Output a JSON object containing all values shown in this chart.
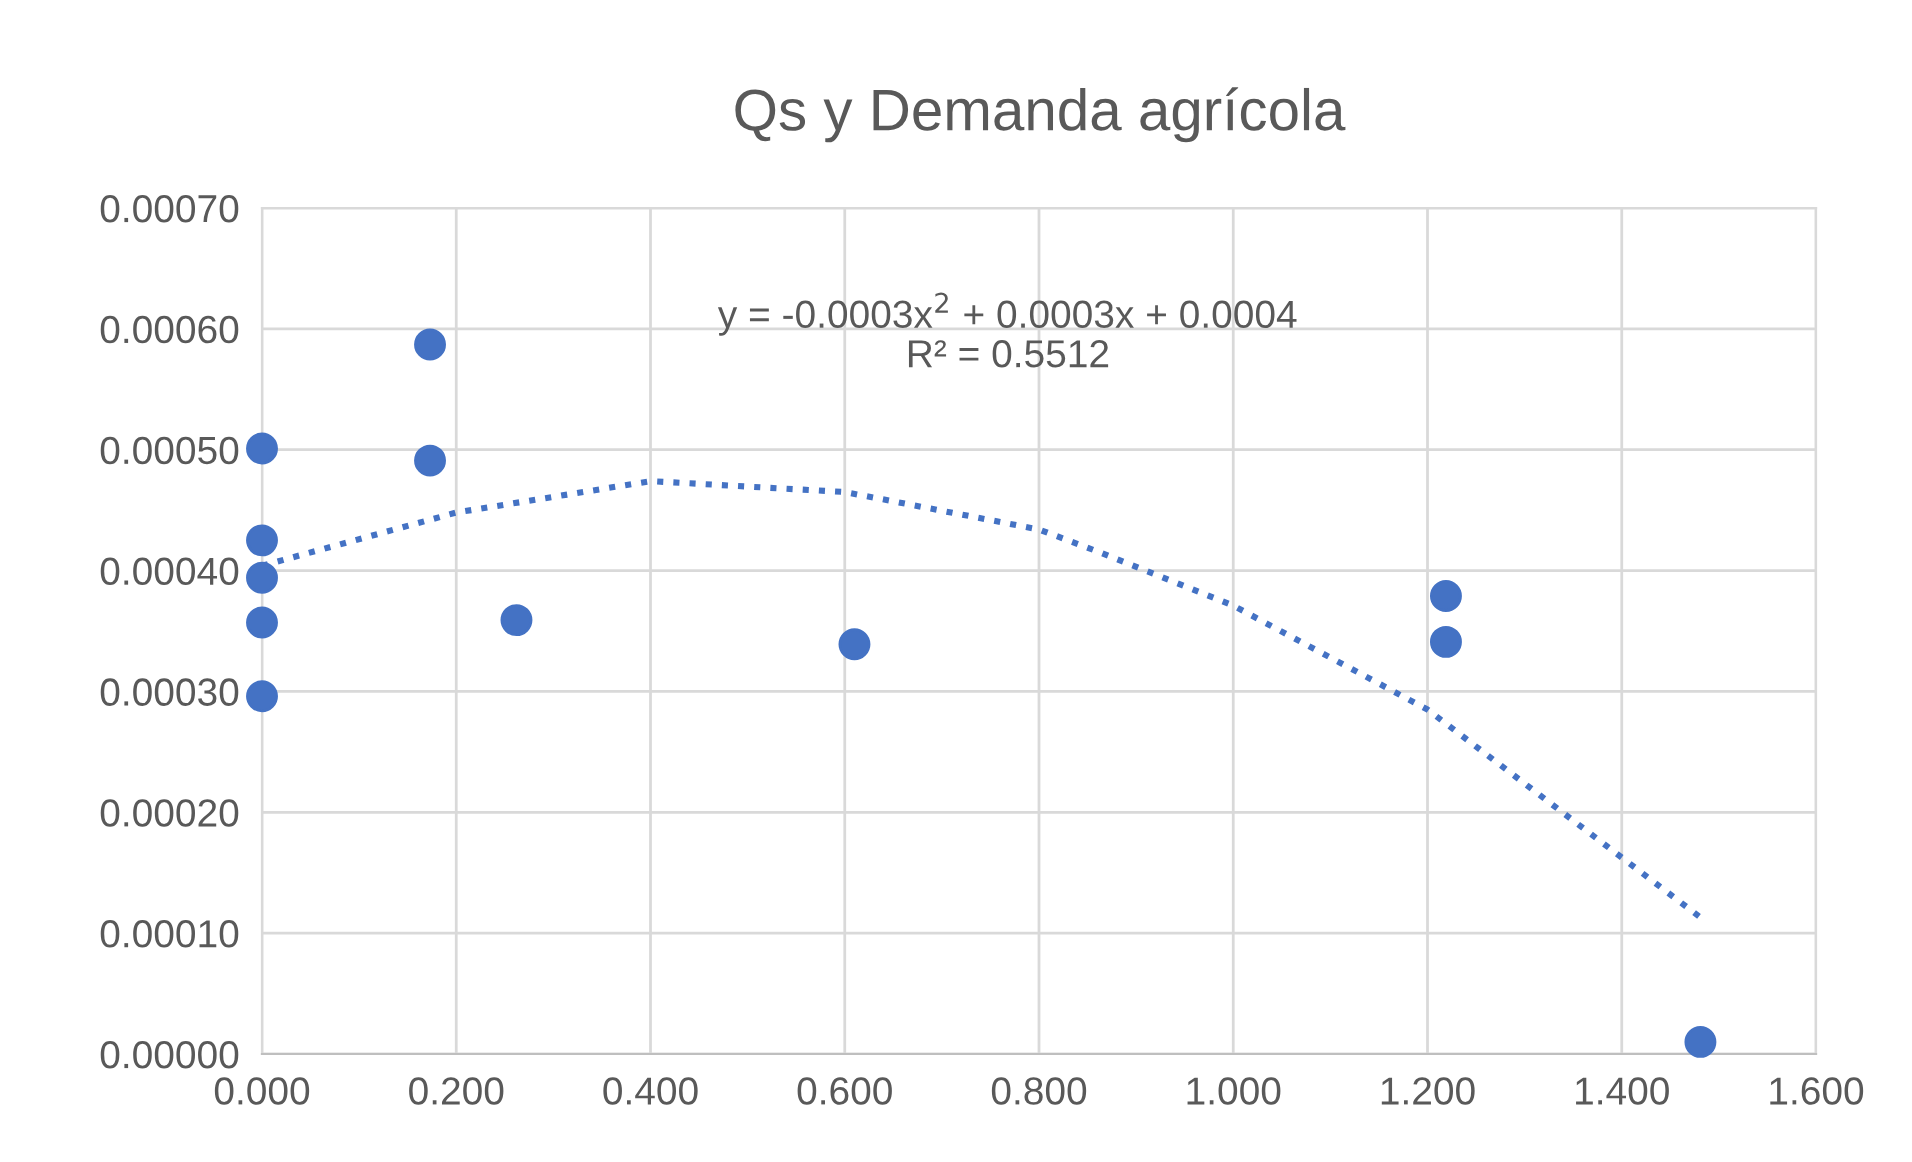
{
  "chart_data": {
    "type": "scatter",
    "title": "Qs y Demanda agrícola",
    "annotations": [
      "y = -0.0003x$^{2}$ + 0.0003x + 0.0004\nR² = 0.5512"
    ],
    "series": [
      {
        "color": "#4472c4",
        "marker": "circle",
        "x": [
          0,
          0,
          0,
          0,
          0,
          0.173,
          0.173,
          0.262,
          0.61,
          1.219,
          1.219,
          1.481
        ],
        "values": [
          0.000501,
          0.000425,
          0.000394,
          0.000357,
          0.000296,
          0.000587,
          0.000491,
          0.000359,
          0.000339,
          0.000379,
          0.000341,
          1e-05
        ]
      },
      {
        "type": "line",
        "color": "#4472c4",
        "line_style": "dotted",
        "x": [
          0,
          0.2,
          0.4,
          0.6,
          0.8,
          0.863,
          1.0,
          1.2,
          1.481
        ],
        "values": [
          0.000404,
          0.000448,
          0.000474,
          0.000465,
          0.000434,
          0.000415,
          0.000371,
          0.000285,
          0.000113
        ]
      }
    ],
    "xlim": [
      0,
      1.6
    ],
    "xticks": [
      {
        "value": 0,
        "label": "0.000"
      },
      {
        "value": 0.2,
        "label": "0.200"
      },
      {
        "value": 0.4,
        "label": "0.400"
      },
      {
        "value": 0.6,
        "label": "0.600"
      },
      {
        "value": 0.8,
        "label": "0.800"
      },
      {
        "value": 1.0,
        "label": "1.000"
      },
      {
        "value": 1.2,
        "label": "1.200"
      },
      {
        "value": 1.4,
        "label": "1.400"
      },
      {
        "value": 1.6,
        "label": "1.600"
      }
    ],
    "ylim": [
      0,
      0.0007
    ],
    "yticks": [
      {
        "value": 0,
        "label": "0.00000"
      },
      {
        "value": 0.0001,
        "label": "0.00010"
      },
      {
        "value": 0.0002,
        "label": "0.00020"
      },
      {
        "value": 0.0003,
        "label": "0.00030"
      },
      {
        "value": 0.0004,
        "label": "0.00040"
      },
      {
        "value": 0.0005,
        "label": "0.00050"
      },
      {
        "value": 0.0006,
        "label": "0.00060"
      },
      {
        "value": 0.0007,
        "label": "0.00070"
      }
    ],
    "grid": true
  }
}
